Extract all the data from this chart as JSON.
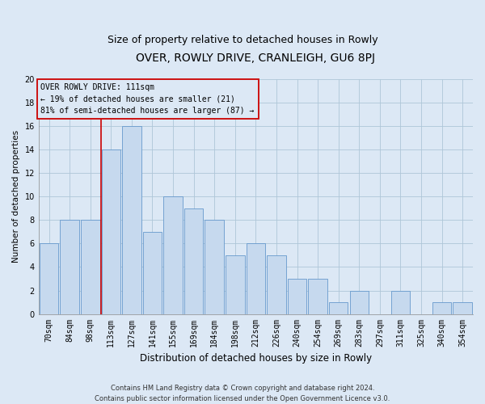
{
  "title": "OVER, ROWLY DRIVE, CRANLEIGH, GU6 8PJ",
  "subtitle": "Size of property relative to detached houses in Rowly",
  "xlabel": "Distribution of detached houses by size in Rowly",
  "ylabel": "Number of detached properties",
  "categories": [
    "70sqm",
    "84sqm",
    "98sqm",
    "113sqm",
    "127sqm",
    "141sqm",
    "155sqm",
    "169sqm",
    "184sqm",
    "198sqm",
    "212sqm",
    "226sqm",
    "240sqm",
    "254sqm",
    "269sqm",
    "283sqm",
    "297sqm",
    "311sqm",
    "325sqm",
    "340sqm",
    "354sqm"
  ],
  "values": [
    6,
    8,
    8,
    14,
    16,
    7,
    10,
    9,
    8,
    5,
    6,
    5,
    3,
    3,
    1,
    2,
    0,
    2,
    0,
    1,
    1
  ],
  "bar_color": "#c6d9ee",
  "bar_edge_color": "#6699cc",
  "vline_color": "#cc0000",
  "vline_index": 2.5,
  "annotation_box_text": "OVER ROWLY DRIVE: 111sqm\n← 19% of detached houses are smaller (21)\n81% of semi-detached houses are larger (87) →",
  "annotation_box_color": "#cc0000",
  "ylim": [
    0,
    20
  ],
  "yticks": [
    0,
    2,
    4,
    6,
    8,
    10,
    12,
    14,
    16,
    18,
    20
  ],
  "grid_color": "#aec6d8",
  "background_color": "#dce8f5",
  "plot_bg_color": "#dce8f5",
  "footer": "Contains HM Land Registry data © Crown copyright and database right 2024.\nContains public sector information licensed under the Open Government Licence v3.0.",
  "title_fontsize": 10,
  "subtitle_fontsize": 9,
  "xlabel_fontsize": 8.5,
  "ylabel_fontsize": 7.5,
  "annotation_fontsize": 7,
  "footer_fontsize": 6,
  "tick_fontsize": 7
}
